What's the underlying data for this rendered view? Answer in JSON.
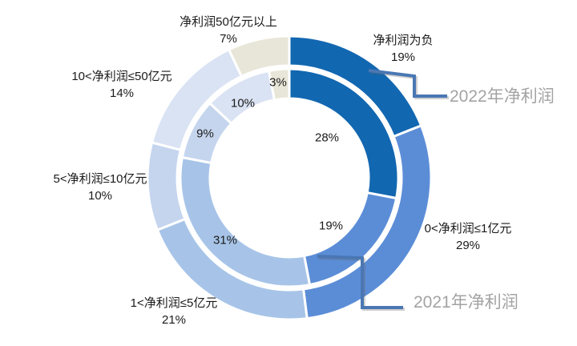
{
  "chart_data": {
    "type": "donut",
    "title": "",
    "unit": "%",
    "categories": [
      "净利润为负",
      "0<净利润≤1亿元",
      "1<净利润≤5亿元",
      "5<净利润≤10亿元",
      "10<净利润≤50亿元",
      "净利润50亿元以上"
    ],
    "category_colors": [
      "#1267B1",
      "#5B8DD7",
      "#A7C4E8",
      "#C5D5EE",
      "#DAE3F3",
      "#E8E6D8"
    ],
    "series": [
      {
        "name": "2022年净利润",
        "ring": "outer",
        "values": [
          19,
          29,
          21,
          10,
          14,
          7
        ]
      },
      {
        "name": "2021年净利润",
        "ring": "inner",
        "values": [
          28,
          19,
          31,
          9,
          10,
          3
        ]
      }
    ],
    "layout_hints": {
      "legend_position": "callouts-right",
      "grid": false,
      "segment_border_color": "#FFFFFF",
      "callout_line_color": "#4A77B3",
      "series_label_color": "#A3A3A3",
      "data_label_color": "#1A1A1A",
      "background": "#FFFFFF"
    }
  }
}
